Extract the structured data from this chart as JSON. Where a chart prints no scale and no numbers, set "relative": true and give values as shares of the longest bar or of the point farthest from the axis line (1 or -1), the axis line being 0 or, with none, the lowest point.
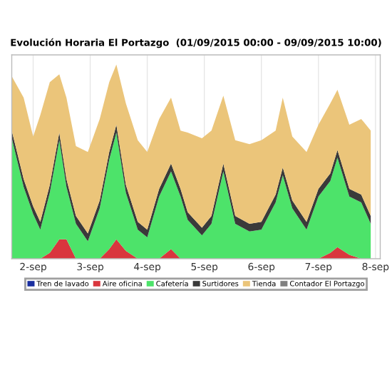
{
  "chart_data": {
    "type": "area",
    "stacked": true,
    "relative": true,
    "title": "Evolución Horaria El Portazgo  (01/09/2015 00:00 - 09/09/2015 10:00)",
    "x": [
      "2015-09-01T15:00",
      "2015-09-01T20:00",
      "2015-09-02T00:00",
      "2015-09-02T03:00",
      "2015-09-02T07:00",
      "2015-09-02T11:00",
      "2015-09-02T14:00",
      "2015-09-02T18:00",
      "2015-09-02T23:00",
      "2015-09-03T04:00",
      "2015-09-03T08:00",
      "2015-09-03T11:00",
      "2015-09-03T15:00",
      "2015-09-03T20:00",
      "2015-09-04T00:00",
      "2015-09-04T05:00",
      "2015-09-04T10:00",
      "2015-09-04T14:00",
      "2015-09-04T17:00",
      "2015-09-04T23:00",
      "2015-09-05T03:00",
      "2015-09-05T08:00",
      "2015-09-05T13:00",
      "2015-09-05T19:00",
      "2015-09-06T00:00",
      "2015-09-06T06:00",
      "2015-09-06T09:00",
      "2015-09-06T13:00",
      "2015-09-06T19:00",
      "2015-09-07T00:00",
      "2015-09-07T05:00",
      "2015-09-07T08:00",
      "2015-09-07T13:00",
      "2015-09-07T18:00",
      "2015-09-07T22:00"
    ],
    "series": [
      {
        "name": "Tren de lavado",
        "color": "#1a2fa0",
        "values": [
          null,
          null,
          null,
          null,
          null,
          null,
          null,
          null,
          null,
          null,
          null,
          null,
          null,
          null,
          null,
          null,
          null,
          null,
          null,
          null,
          null,
          null,
          null,
          null,
          null,
          null,
          null,
          null,
          null,
          null,
          null,
          null,
          null,
          null,
          null
        ]
      },
      {
        "name": "Aire oficina",
        "color": "#d9363e",
        "values": [
          0,
          0,
          0,
          0,
          0.03,
          0.1,
          0.1,
          0,
          0,
          0,
          0.05,
          0.1,
          0.04,
          0,
          0,
          0,
          0.05,
          0,
          0,
          0,
          0,
          0,
          0,
          0,
          0,
          0,
          0,
          0,
          0,
          0,
          0.03,
          0.06,
          0.02,
          0,
          0
        ]
      },
      {
        "name": "Cafetería",
        "color": "#4de36a",
        "values": [
          0.62,
          0.37,
          0.23,
          0.15,
          0.31,
          0.51,
          0.27,
          0.18,
          0.09,
          0.26,
          0.46,
          0.55,
          0.3,
          0.15,
          0.11,
          0.32,
          0.4,
          0.32,
          0.2,
          0.12,
          0.18,
          0.45,
          0.18,
          0.14,
          0.15,
          0.29,
          0.43,
          0.26,
          0.15,
          0.32,
          0.37,
          0.46,
          0.3,
          0.29,
          0.18
        ]
      },
      {
        "name": "Surtidores",
        "color": "#3a3a3a",
        "values": [
          0.04,
          0.04,
          0.04,
          0.04,
          0.04,
          0.04,
          0.04,
          0.04,
          0.04,
          0.04,
          0.04,
          0.04,
          0.04,
          0.04,
          0.04,
          0.04,
          0.04,
          0.04,
          0.04,
          0.04,
          0.04,
          0.04,
          0.04,
          0.04,
          0.04,
          0.04,
          0.04,
          0.04,
          0.04,
          0.04,
          0.04,
          0.04,
          0.04,
          0.04,
          0.04
        ]
      },
      {
        "name": "Tienda",
        "color": "#ebc57a",
        "values": [
          0.28,
          0.42,
          0.36,
          0.55,
          0.53,
          0.3,
          0.42,
          0.36,
          0.42,
          0.42,
          0.36,
          0.31,
          0.42,
          0.42,
          0.4,
          0.36,
          0.34,
          0.3,
          0.41,
          0.46,
          0.44,
          0.35,
          0.39,
          0.41,
          0.42,
          0.33,
          0.36,
          0.33,
          0.36,
          0.33,
          0.36,
          0.31,
          0.33,
          0.39,
          0.44
        ]
      },
      {
        "name": "Contador El Portazgo",
        "color": "#808080",
        "values": [
          null,
          null,
          null,
          null,
          null,
          null,
          null,
          null,
          null,
          null,
          null,
          null,
          null,
          null,
          null,
          null,
          null,
          null,
          null,
          null,
          null,
          null,
          null,
          null,
          null,
          null,
          null,
          null,
          null,
          null,
          null,
          null,
          null,
          null,
          null
        ]
      }
    ],
    "xlim": [
      "2015-09-01T15:00",
      "2015-09-08T02:00"
    ],
    "xticks": [
      {
        "value": "2015-09-02",
        "label": "2-sep"
      },
      {
        "value": "2015-09-03",
        "label": "3-sep"
      },
      {
        "value": "2015-09-04",
        "label": "4-sep"
      },
      {
        "value": "2015-09-05",
        "label": "5-sep"
      },
      {
        "value": "2015-09-06",
        "label": "6-sep"
      },
      {
        "value": "2015-09-07",
        "label": "7-sep"
      },
      {
        "value": "2015-09-08",
        "label": "8-sep"
      }
    ],
    "grid": "x",
    "legend": "bottom"
  }
}
